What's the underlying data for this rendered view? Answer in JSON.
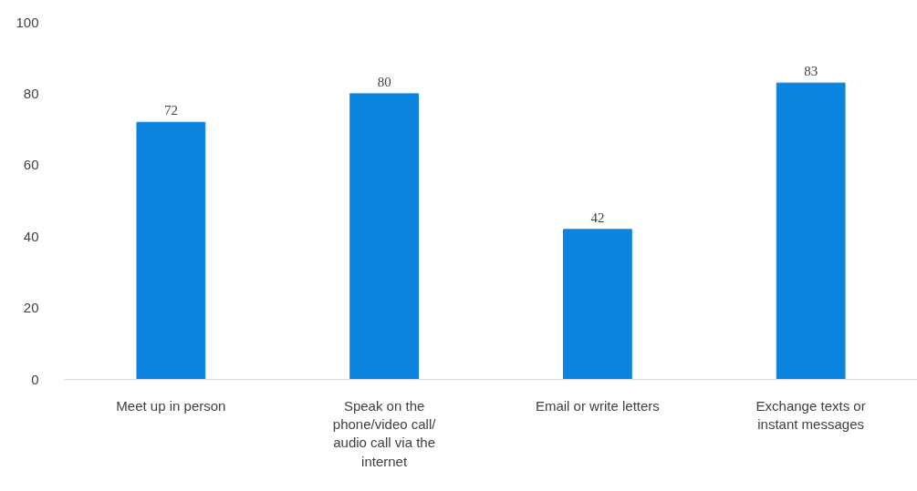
{
  "chart_data": {
    "type": "bar",
    "categories": [
      "Meet up in person",
      "Speak on the phone/video call/ audio call via the internet",
      "Email or write letters",
      "Exchange texts or instant messages"
    ],
    "values": [
      72,
      80,
      42,
      83
    ],
    "color": "#0b84e0",
    "ylim": [
      0,
      100
    ],
    "yticks": [
      0,
      20,
      40,
      60,
      80,
      100
    ],
    "grid": false,
    "data_labels": true
  }
}
